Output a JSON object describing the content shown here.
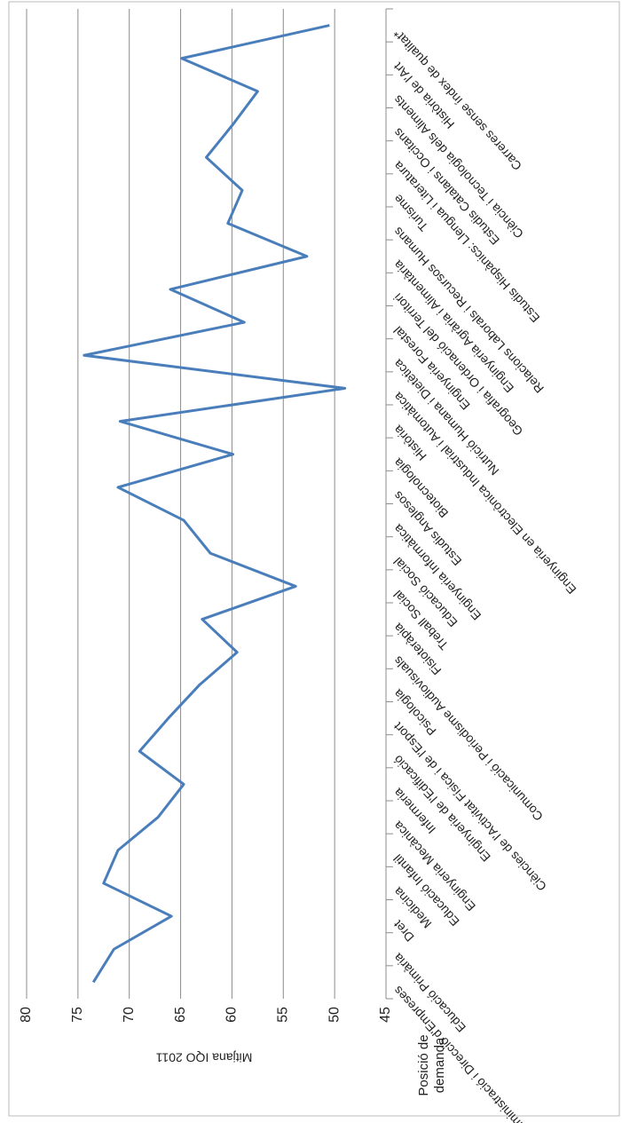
{
  "chart_data": {
    "type": "line",
    "y_label": "Mitjana IQO 2011",
    "x_label_lines": [
      "Posició de",
      "demanda"
    ],
    "categories": [
      "Administració i Direcció d'Empreses",
      "Educació Primària",
      "Dret",
      "Medicina",
      "Educació Infantil",
      "Enginyeria Mecànica",
      "Infermeria",
      "Enginyeria de l'Edificació",
      "Ciències de l'Activitat Física i de l'Esport",
      "Psicologia",
      "Comunicació i Periodisme Audiovisuals",
      "Fisioteràpia",
      "Treball Social",
      "Educació Social",
      "Enginyeria Informàtica",
      "Estudis Anglesos",
      "Biotecnologia",
      "Història",
      "Enginyeria en Electrònica Industrial i Automàtica",
      "Nutrició Humana i Dietètica",
      "Enginyeria Forestal",
      "Geografia i Ordenació del Territori",
      "Enginyeria Agrària i Alimentària",
      "Relacions Laborals i Recursos Humans",
      "Turisme",
      "Estudis Hispànics: Llengua i Literatura",
      "Estudis Catalans i Occitans",
      "Ciència i Tecnologia dels Aliments",
      "Història de l'Art",
      "Carreres sense índex de qualitat*"
    ],
    "series": [
      {
        "color": "#4a7ebb",
        "values": [
          73.5,
          71.5,
          65.9,
          72.5,
          71.1,
          67.2,
          64.7,
          69.0,
          66.2,
          63.2,
          59.5,
          62.9,
          53.8,
          62.1,
          64.7,
          71.1,
          59.9,
          70.9,
          49.0,
          74.4,
          58.8,
          66.0,
          52.7,
          60.4,
          59.0,
          62.5,
          59.9,
          57.5,
          64.9,
          50.5
        ]
      }
    ],
    "ylim": [
      45,
      80
    ],
    "yticks": [
      45,
      50,
      55,
      60,
      65,
      70,
      75,
      80
    ],
    "grid": true
  }
}
